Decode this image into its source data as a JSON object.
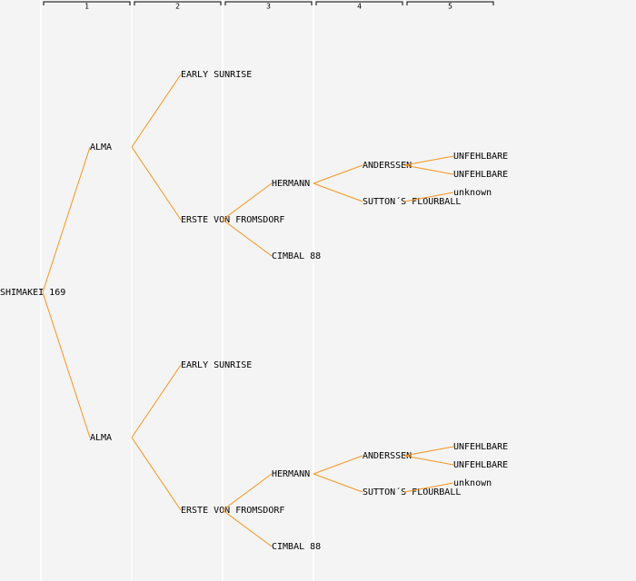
{
  "columns": [
    "1",
    "2",
    "3",
    "4",
    "5"
  ],
  "tree": {
    "label": "SHIMAKEI 169",
    "children": [
      {
        "label": "ALMA",
        "children": [
          {
            "label": "EARLY SUNRISE"
          },
          {
            "label": "ERSTE VON FROMSDORF",
            "children": [
              {
                "label": "HERMANN",
                "children": [
                  {
                    "label": "ANDERSSEN",
                    "children": [
                      {
                        "label": "UNFEHLBARE"
                      },
                      {
                        "label": "UNFEHLBARE"
                      }
                    ]
                  },
                  {
                    "label": "SUTTON´S FLOURBALL",
                    "children": [
                      {
                        "label": "unknown"
                      }
                    ]
                  }
                ]
              },
              {
                "label": "CIMBAL 88"
              }
            ]
          }
        ]
      },
      {
        "label": "ALMA",
        "children": [
          {
            "label": "EARLY SUNRISE"
          },
          {
            "label": "ERSTE VON FROMSDORF",
            "children": [
              {
                "label": "HERMANN",
                "children": [
                  {
                    "label": "ANDERSSEN",
                    "children": [
                      {
                        "label": "UNFEHLBARE"
                      },
                      {
                        "label": "UNFEHLBARE"
                      }
                    ]
                  },
                  {
                    "label": "SUTTON´S FLOURBALL",
                    "children": [
                      {
                        "label": "unknown"
                      }
                    ]
                  }
                ]
              },
              {
                "label": "CIMBAL 88"
              }
            ]
          }
        ]
      }
    ]
  }
}
